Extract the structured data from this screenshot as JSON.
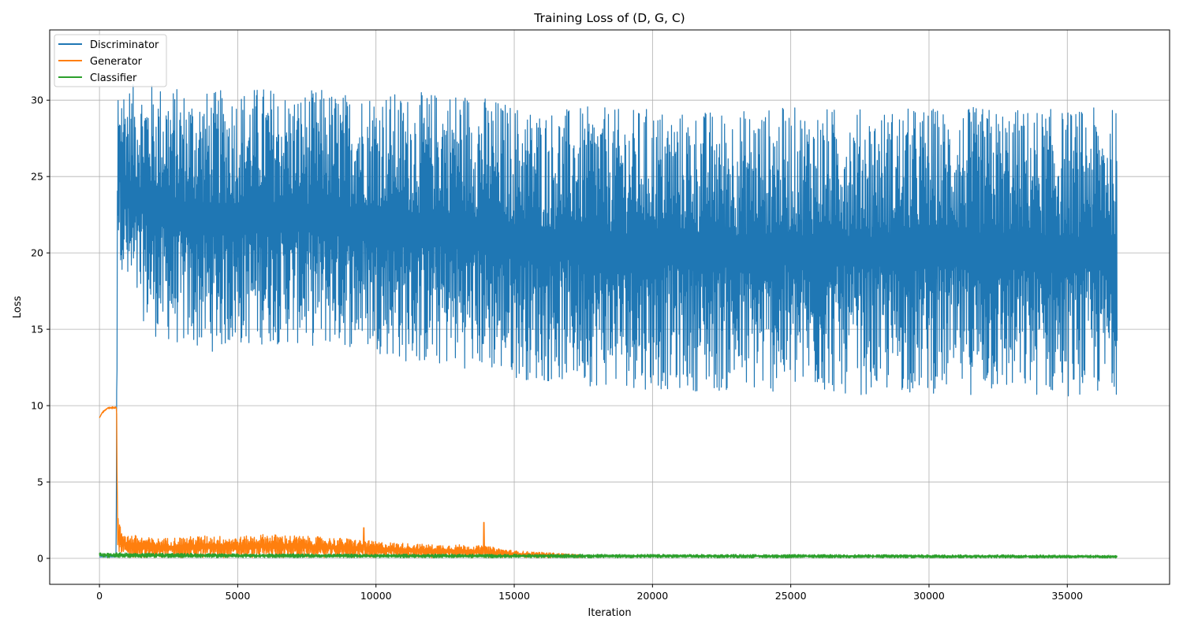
{
  "chart_data": {
    "type": "line",
    "title": "Training Loss of (D, G, C)",
    "xlabel": "Iteration",
    "ylabel": "Loss",
    "xlim": [
      -1800,
      38700
    ],
    "ylim": [
      -1.7,
      34.6
    ],
    "xticks": [
      0,
      5000,
      10000,
      15000,
      20000,
      25000,
      30000,
      35000
    ],
    "yticks": [
      0,
      5,
      10,
      15,
      20,
      25,
      30
    ],
    "grid": true,
    "legend_position": "upper-left",
    "series": [
      {
        "name": "Discriminator",
        "color": "#1f77b4",
        "x": [
          0,
          600,
          660,
          1000,
          2000,
          3000,
          4000,
          5000,
          6000,
          7000,
          8000,
          9000,
          10000,
          11000,
          12000,
          13000,
          14000,
          15000,
          16000,
          17000,
          18000,
          19000,
          20000,
          21000,
          22000,
          23000,
          24000,
          25000,
          26000,
          27000,
          28000,
          29000,
          30000,
          31000,
          32000,
          33000,
          34000,
          35000,
          36000,
          36800
        ],
        "y_upper": [
          0.1,
          0.1,
          31.5,
          31.0,
          31.2,
          30.8,
          30.6,
          30.8,
          31.0,
          30.5,
          30.8,
          30.5,
          30.8,
          30.4,
          30.6,
          30.8,
          30.3,
          29.8,
          29.5,
          29.5,
          29.6,
          29.4,
          29.6,
          29.3,
          29.4,
          29.4,
          29.5,
          29.6,
          29.5,
          29.6,
          29.4,
          29.5,
          29.6,
          29.5,
          29.6,
          29.5,
          29.5,
          29.4,
          29.5,
          29.5
        ],
        "y_lower": [
          0.1,
          0.1,
          20.5,
          17.0,
          14.5,
          13.8,
          13.5,
          13.8,
          14.0,
          14.0,
          13.8,
          13.8,
          13.5,
          12.8,
          12.5,
          12.5,
          12.2,
          11.8,
          11.5,
          11.5,
          11.2,
          11.2,
          11.0,
          11.0,
          10.9,
          10.8,
          10.8,
          10.8,
          10.8,
          10.7,
          10.7,
          10.8,
          10.8,
          10.7,
          10.7,
          10.6,
          10.6,
          10.6,
          10.6,
          10.7
        ]
      },
      {
        "name": "Generator",
        "color": "#ff7f0e",
        "x": [
          0,
          100,
          300,
          620,
          650,
          700,
          1000,
          2000,
          3000,
          4000,
          5000,
          6000,
          7000,
          8000,
          9000,
          10000,
          11000,
          12000,
          13000,
          14000,
          15000,
          16000,
          17000,
          17500
        ],
        "y_upper": [
          9.2,
          9.6,
          9.9,
          9.95,
          3.8,
          2.3,
          1.6,
          1.3,
          1.4,
          1.5,
          1.4,
          1.6,
          1.5,
          1.4,
          1.3,
          1.1,
          1.0,
          0.9,
          0.9,
          0.8,
          0.5,
          0.4,
          0.3,
          0.2
        ],
        "y_lower": [
          9.2,
          9.5,
          9.8,
          9.8,
          0.2,
          0.05,
          0.05,
          0.05,
          0.05,
          0.05,
          0.05,
          0.05,
          0.05,
          0.05,
          0.05,
          0.05,
          0.05,
          0.05,
          0.05,
          0.05,
          0.05,
          0.05,
          0.05,
          0.05
        ],
        "spikes": [
          [
            9560,
            2.0
          ],
          [
            13900,
            2.35
          ]
        ]
      },
      {
        "name": "Classifier",
        "color": "#2ca02c",
        "x": [
          0,
          5000,
          10000,
          15000,
          20000,
          25000,
          30000,
          35000,
          36800
        ],
        "y_upper": [
          0.38,
          0.3,
          0.28,
          0.27,
          0.26,
          0.25,
          0.24,
          0.22,
          0.2
        ],
        "y_lower": [
          0.05,
          0.05,
          0.05,
          0.04,
          0.04,
          0.03,
          0.03,
          0.02,
          0.02
        ]
      }
    ]
  }
}
